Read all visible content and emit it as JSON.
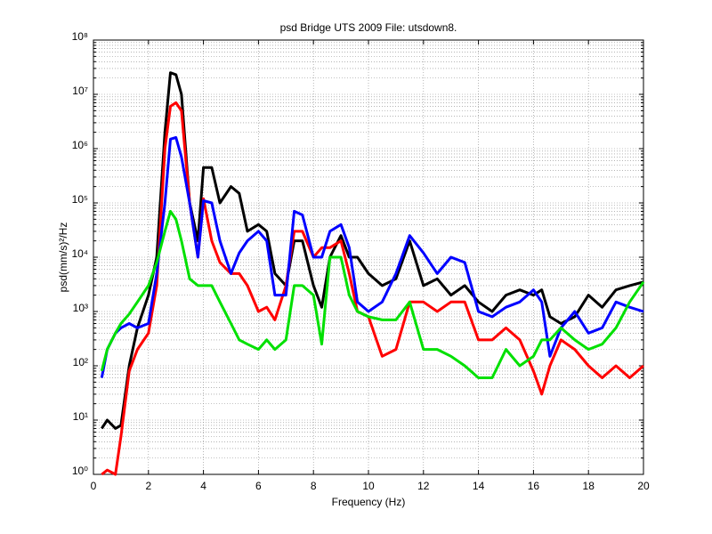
{
  "chart_data": {
    "type": "line",
    "title": "psd Bridge UTS 2009 File: utsdown8.",
    "xlabel": "Frequency (Hz)",
    "ylabel": "psd(mm/s)²/Hz",
    "x": [
      0.3,
      0.5,
      0.8,
      1.0,
      1.3,
      1.6,
      2.0,
      2.3,
      2.6,
      2.8,
      3.0,
      3.2,
      3.5,
      3.8,
      4.0,
      4.3,
      4.6,
      5.0,
      5.3,
      5.6,
      6.0,
      6.3,
      6.6,
      7.0,
      7.3,
      7.6,
      8.0,
      8.3,
      8.6,
      9.0,
      9.3,
      9.6,
      10.0,
      10.5,
      11.0,
      11.5,
      12.0,
      12.5,
      13.0,
      13.5,
      14.0,
      14.5,
      15.0,
      15.5,
      16.0,
      16.3,
      16.6,
      17.0,
      17.5,
      18.0,
      18.5,
      19.0,
      19.5,
      20.0
    ],
    "series": [
      {
        "color": "#000000",
        "values": [
          7,
          10,
          7,
          8,
          100,
          500,
          2000,
          10000,
          2000000,
          25000000,
          23000000,
          10000000,
          100000,
          20000,
          450000,
          450000,
          100000,
          200000,
          150000,
          30000,
          40000,
          30000,
          5000,
          3000,
          20000,
          20000,
          3000,
          1200,
          10000,
          25000,
          10000,
          10000,
          5000,
          3000,
          4000,
          20000,
          3000,
          4000,
          2000,
          3000,
          1500,
          1000,
          2000,
          2500,
          2000,
          2500,
          800,
          600,
          800,
          2000,
          1200,
          2500,
          3000,
          3500
        ]
      },
      {
        "color": "#ff0000",
        "values": [
          1,
          1.2,
          1,
          5,
          80,
          200,
          400,
          3000,
          1000000,
          6000000,
          7000000,
          5000000,
          100000,
          10000,
          120000,
          20000,
          8000,
          5000,
          5000,
          3000,
          1000,
          1200,
          700,
          3000,
          30000,
          30000,
          10000,
          15000,
          15000,
          20000,
          5000,
          1000,
          800,
          150,
          200,
          1500,
          1500,
          1000,
          1500,
          1500,
          300,
          300,
          500,
          300,
          80,
          30,
          100,
          300,
          200,
          100,
          60,
          100,
          60,
          100
        ]
      },
      {
        "color": "#0000ff",
        "values": [
          60,
          200,
          400,
          500,
          600,
          500,
          600,
          5000,
          100000,
          1500000,
          1600000,
          700000,
          100000,
          10000,
          110000,
          100000,
          20000,
          5000,
          12000,
          20000,
          30000,
          20000,
          2000,
          2000,
          70000,
          60000,
          10000,
          10000,
          30000,
          40000,
          15000,
          1500,
          1000,
          1500,
          5000,
          25000,
          12000,
          5000,
          10000,
          8000,
          1000,
          800,
          1200,
          1500,
          2500,
          1500,
          150,
          500,
          1000,
          400,
          500,
          1500,
          1200,
          1000
        ]
      },
      {
        "color": "#00e000",
        "values": [
          80,
          200,
          400,
          600,
          900,
          1500,
          3000,
          8000,
          30000,
          70000,
          50000,
          20000,
          4000,
          3000,
          3000,
          3000,
          1500,
          600,
          300,
          250,
          200,
          300,
          200,
          300,
          3000,
          3000,
          2000,
          250,
          10000,
          10000,
          2000,
          1000,
          800,
          700,
          700,
          1500,
          200,
          200,
          150,
          100,
          60,
          60,
          200,
          100,
          150,
          300,
          300,
          500,
          300,
          200,
          250,
          500,
          1500,
          3500
        ]
      }
    ],
    "xlim": [
      0,
      20
    ],
    "xticks": [
      0,
      2,
      4,
      6,
      8,
      10,
      12,
      14,
      16,
      18,
      20
    ],
    "ylim": [
      1,
      100000000
    ],
    "ylog": true,
    "yticks": [
      {
        "value": 1,
        "label": "10⁰"
      },
      {
        "value": 10,
        "label": "10¹"
      },
      {
        "value": 100,
        "label": "10²"
      },
      {
        "value": 1000,
        "label": "10³"
      },
      {
        "value": 10000,
        "label": "10⁴"
      },
      {
        "value": 100000,
        "label": "10⁵"
      },
      {
        "value": 1000000,
        "label": "10⁶"
      },
      {
        "value": 10000000,
        "label": "10⁷"
      },
      {
        "value": 100000000,
        "label": "10⁸"
      }
    ],
    "grid": true,
    "minor_grid": true
  }
}
